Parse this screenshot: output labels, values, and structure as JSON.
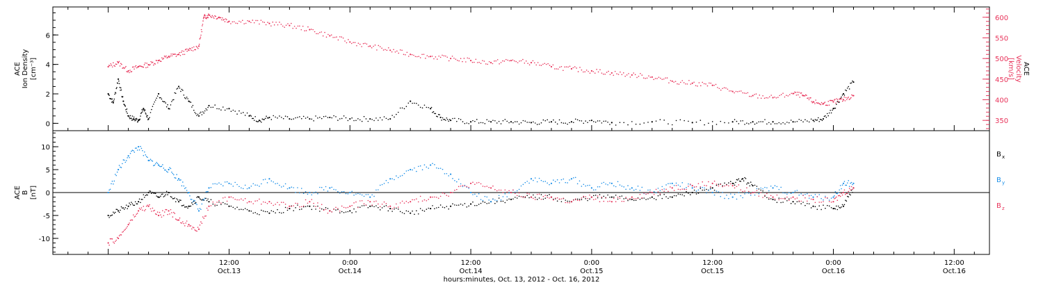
{
  "chart_data": [
    {
      "type": "scatter",
      "panel": "top",
      "ylabel_left": [
        "ACE",
        "Ion Density",
        "[cm⁻³]"
      ],
      "ylabel_right": [
        "ACE",
        "Velocity",
        "[km/s]"
      ],
      "y_left_ticks": [
        0,
        2,
        4,
        6
      ],
      "y_left_range": [
        -0.5,
        7.9
      ],
      "y_right_ticks": [
        350,
        400,
        450,
        500,
        550,
        600
      ],
      "y_right_range": [
        325,
        625
      ],
      "colors": {
        "density": "#000000",
        "velocity": "#e8335a"
      },
      "series": [
        {
          "name": "Ion Density",
          "color": "#000000",
          "axis": "left",
          "x": [
            0.0,
            0.5,
            1.0,
            1.5,
            2.0,
            2.5,
            3.0,
            3.5,
            4.0,
            5.0,
            6.0,
            7.0,
            8.0,
            9.0,
            10.0,
            12.0,
            14.0,
            15.0,
            16.0,
            18.0,
            20.0,
            22.0,
            24.0,
            26.0,
            28.0,
            30.0,
            32.0,
            33.0,
            34.0,
            36.0,
            38.0,
            40.0,
            42.0,
            44.0,
            46.0,
            48.0,
            50.0,
            54.0,
            58.0,
            62.0,
            64.0,
            66.0,
            68.0,
            70.0,
            71.0,
            72.0,
            73.0,
            74.0
          ],
          "y": [
            2.0,
            1.4,
            3.0,
            1.5,
            0.5,
            0.3,
            0.2,
            1.0,
            0.3,
            2.0,
            1.0,
            2.5,
            1.5,
            0.5,
            1.2,
            1.0,
            0.5,
            0.2,
            0.4,
            0.3,
            0.3,
            0.4,
            0.3,
            0.3,
            0.3,
            1.5,
            1.0,
            0.4,
            0.2,
            0.1,
            0.1,
            0.1,
            0.05,
            0.1,
            0.1,
            0.2,
            0.05,
            0.1,
            0.05,
            0.1,
            0.1,
            0.1,
            0.1,
            0.2,
            0.3,
            1.0,
            2.0,
            2.8
          ]
        },
        {
          "name": "Velocity",
          "color": "#e8335a",
          "axis": "right",
          "x": [
            0.0,
            1.0,
            2.0,
            3.0,
            4.0,
            5.0,
            6.0,
            7.0,
            8.0,
            9.0,
            9.5,
            10.0,
            11.0,
            12.0,
            14.0,
            16.0,
            18.0,
            20.0,
            22.0,
            24.0,
            26.0,
            28.0,
            30.0,
            32.0,
            34.0,
            36.0,
            38.0,
            40.0,
            42.0,
            44.0,
            46.0,
            48.0,
            50.0,
            52.0,
            54.0,
            56.0,
            58.0,
            60.0,
            62.0,
            64.0,
            66.0,
            68.0,
            69.0,
            70.0,
            71.0,
            72.0,
            73.0,
            74.0
          ],
          "y": [
            480,
            490,
            470,
            480,
            485,
            495,
            505,
            510,
            520,
            530,
            600,
            605,
            600,
            590,
            590,
            585,
            580,
            570,
            555,
            540,
            530,
            520,
            510,
            505,
            500,
            495,
            490,
            495,
            490,
            480,
            475,
            470,
            465,
            460,
            455,
            445,
            440,
            435,
            420,
            410,
            405,
            415,
            410,
            395,
            390,
            395,
            400,
            410
          ]
        }
      ]
    },
    {
      "type": "scatter",
      "panel": "bottom",
      "ylabel": [
        "ACE",
        "B",
        "[nT]"
      ],
      "y_ticks": [
        -10,
        -5,
        0,
        5,
        10
      ],
      "y_range": [
        -13.5,
        13.5
      ],
      "zero_line": true,
      "colors": {
        "Bx": "#000000",
        "By": "#1a8fe8",
        "Bz": "#e8335a"
      },
      "legend": [
        "Bx",
        "By",
        "Bz"
      ],
      "series": [
        {
          "name": "Bx",
          "color": "#000000",
          "x": [
            0.0,
            1.0,
            2.0,
            3.0,
            4.0,
            5.0,
            6.0,
            7.0,
            8.0,
            9.0,
            10.0,
            12.0,
            14.0,
            16.0,
            18.0,
            20.0,
            22.0,
            24.0,
            26.0,
            28.0,
            30.0,
            32.0,
            34.0,
            36.0,
            38.0,
            40.0,
            42.0,
            44.0,
            46.0,
            48.0,
            50.0,
            52.0,
            54.0,
            56.0,
            58.0,
            60.0,
            62.0,
            63.0,
            64.0,
            66.0,
            68.0,
            70.0,
            72.0,
            73.0,
            74.0
          ],
          "y": [
            -5,
            -4,
            -3,
            -2,
            0,
            -1,
            0,
            -2,
            -3,
            -1,
            -2,
            -3,
            -4,
            -4.5,
            -3.5,
            -3,
            -4,
            -4,
            -3,
            -3.5,
            -4.5,
            -3.5,
            -3,
            -2.5,
            -2,
            -1.5,
            -1,
            -1,
            -2,
            -1,
            -1,
            -1.5,
            -1,
            -1,
            0,
            1,
            2,
            3,
            1.5,
            -1.5,
            -2,
            -3,
            -3.5,
            -3,
            1
          ]
        },
        {
          "name": "By",
          "color": "#1a8fe8",
          "x": [
            0.0,
            1.0,
            2.0,
            3.0,
            4.0,
            5.0,
            6.0,
            7.0,
            8.0,
            9.0,
            10.0,
            12.0,
            14.0,
            16.0,
            18.0,
            20.0,
            22.0,
            24.0,
            26.0,
            28.0,
            30.0,
            32.0,
            34.0,
            36.0,
            38.0,
            40.0,
            42.0,
            44.0,
            46.0,
            48.0,
            50.0,
            52.0,
            54.0,
            56.0,
            58.0,
            60.0,
            62.0,
            64.0,
            66.0,
            68.0,
            70.0,
            72.0,
            73.0,
            74.0
          ],
          "y": [
            0,
            5,
            8,
            10,
            7,
            6,
            5,
            3,
            0,
            -4,
            1,
            2,
            1,
            3,
            1,
            0,
            1,
            0,
            -1,
            3,
            5,
            6,
            4,
            0,
            -2,
            0,
            3,
            2,
            3,
            1,
            2,
            1,
            0,
            2,
            1,
            0,
            -1,
            0,
            1,
            0,
            -1,
            -1,
            2,
            2
          ]
        },
        {
          "name": "Bz",
          "color": "#e8335a",
          "x": [
            0.0,
            1.0,
            2.0,
            3.0,
            4.0,
            5.0,
            6.0,
            7.0,
            8.0,
            9.0,
            10.0,
            12.0,
            14.0,
            16.0,
            18.0,
            20.0,
            22.0,
            24.0,
            26.0,
            28.0,
            30.0,
            32.0,
            34.0,
            36.0,
            38.0,
            40.0,
            42.0,
            44.0,
            46.0,
            48.0,
            50.0,
            52.0,
            54.0,
            56.0,
            58.0,
            60.0,
            62.0,
            64.0,
            66.0,
            68.0,
            70.0,
            72.0,
            73.0,
            74.0
          ],
          "y": [
            -11,
            -10,
            -7,
            -4,
            -3,
            -5,
            -4,
            -6,
            -7,
            -8,
            -3,
            -1,
            -2,
            -2,
            -3,
            -2,
            -4,
            -3,
            -2,
            -3,
            -2,
            -1,
            0,
            2,
            1,
            0,
            -1,
            -1,
            -2,
            -1,
            -2,
            -1,
            0,
            1,
            1.5,
            2,
            1.5,
            0,
            -1,
            -1,
            -1.5,
            -2,
            0,
            1
          ]
        }
      ]
    }
  ],
  "x_axis": {
    "range_hours": [
      -5.5,
      87.5
    ],
    "xlabel": "hours:minutes, Oct. 13, 2012 - Oct. 16, 2012",
    "major_ticks": [
      {
        "hour": 12,
        "time": "12:00",
        "date": "Oct.13"
      },
      {
        "hour": 24,
        "time": "0:00",
        "date": "Oct.14"
      },
      {
        "hour": 36,
        "time": "12:00",
        "date": "Oct.14"
      },
      {
        "hour": 48,
        "time": "0:00",
        "date": "Oct.15"
      },
      {
        "hour": 60,
        "time": "12:00",
        "date": "Oct.15"
      },
      {
        "hour": 72,
        "time": "0:00",
        "date": "Oct.16"
      },
      {
        "hour": 84,
        "time": "12:00",
        "date": "Oct.16"
      }
    ]
  },
  "legend_labels": {
    "Bx": "B",
    "By": "B",
    "Bz": "B",
    "Bx_sub": "x",
    "By_sub": "y",
    "Bz_sub": "z"
  }
}
